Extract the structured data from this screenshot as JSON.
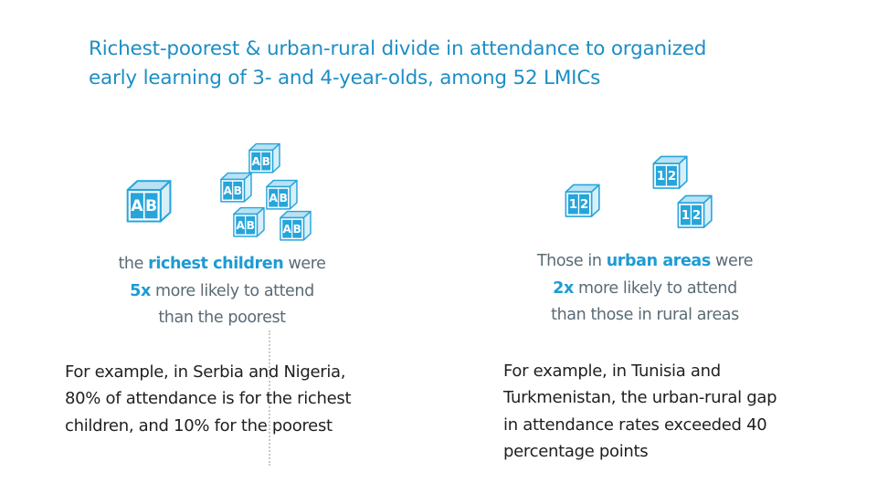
{
  "title": {
    "line1": "Richest-poorest & urban-rural divide in attendance to organized",
    "line2": "early learning of 3- and 4-year-olds, among 52 LMICs"
  },
  "colors": {
    "title": "#1c8ec6",
    "accent": "#1d9bd4",
    "block_fill": "#26a5db",
    "stat_text": "#5a6b75",
    "body_text": "#1f1f1f"
  },
  "icons": {
    "left": {
      "name": "abc-blocks-icon",
      "letters": [
        "A",
        "B"
      ],
      "count": 6
    },
    "right": {
      "name": "number-blocks-icon",
      "letters": [
        "1",
        "2"
      ],
      "count": 3
    }
  },
  "wealth": {
    "line1_prefix": "the ",
    "line1_bold": "richest children",
    "line1_suffix": " were",
    "line2_bold": "5x",
    "line2_suffix": " more likely to attend",
    "line3": "than the poorest",
    "example_line1": "For example, in Serbia and Nigeria,",
    "example_line2": "80% of attendance is for the richest",
    "example_line3": "children, and 10% for the poorest"
  },
  "location": {
    "line1_prefix": "Those in ",
    "line1_bold": "urban areas",
    "line1_suffix": " were",
    "line2_bold": "2x",
    "line2_suffix": " more likely to attend",
    "line3": "than those in rural areas",
    "example_line1": "For example, in Tunisia and",
    "example_line2": "Turkmenistan, the urban-rural gap",
    "example_line3": "in attendance rates exceeded 40",
    "example_line4": "percentage points"
  }
}
